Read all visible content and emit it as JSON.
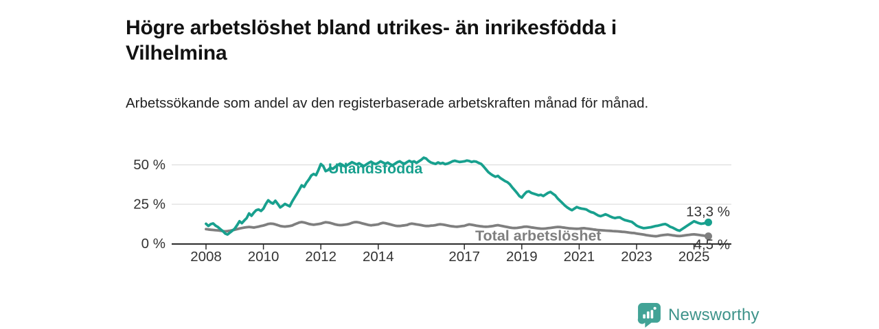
{
  "header": {
    "title": "Högre arbetslöshet bland utrikes- än inrikesfödda i Vilhelmina",
    "subtitle": "Arbetssökande som andel av den registerbaserade arbetskraften månad för månad."
  },
  "chart_data": {
    "type": "line",
    "title": "",
    "xlabel": "",
    "ylabel": "",
    "x_unit": "decimal-year, monthly data",
    "x_start": 2008.0,
    "x_step": 0.083333,
    "xlim": [
      2006.8,
      2026.3
    ],
    "ylim": [
      0,
      56.5
    ],
    "grid": "horizontal",
    "axis_color": "#2b2b2b",
    "grid_color": "#dddddd",
    "tick_label_color": "#333333",
    "x_ticks": [
      2008,
      2010,
      2012,
      2014,
      2017,
      2019,
      2021,
      2023,
      2025
    ],
    "y_ticks": [
      {
        "value": 0,
        "label": "0 %"
      },
      {
        "value": 25,
        "label": "25 %"
      },
      {
        "value": 50,
        "label": "50 %"
      }
    ],
    "series": [
      {
        "name": "Utlandsfödda",
        "color": "#18A08E",
        "end_value": 13.3,
        "end_label": "13,3 %",
        "values": [
          12.4,
          11.0,
          12.2,
          12.6,
          11.2,
          10.3,
          9.0,
          7.8,
          6.2,
          5.6,
          6.8,
          8.0,
          9.3,
          11.5,
          14.0,
          12.8,
          14.5,
          16.0,
          19.0,
          17.5,
          19.5,
          21.0,
          21.5,
          20.5,
          22.0,
          25.0,
          27.3,
          26.0,
          25.2,
          27.0,
          25.0,
          22.8,
          23.8,
          25.0,
          24.2,
          23.5,
          26.5,
          29.0,
          31.5,
          34.0,
          36.8,
          35.8,
          38.5,
          40.5,
          43.0,
          44.0,
          43.2,
          46.5,
          50.3,
          49.0,
          45.8,
          46.5,
          48.0,
          47.2,
          48.5,
          49.5,
          50.5,
          49.8,
          48.8,
          49.5,
          50.5,
          51.5,
          50.8,
          50.0,
          50.8,
          49.8,
          49.0,
          50.0,
          51.0,
          51.8,
          50.8,
          50.2,
          51.0,
          52.0,
          51.2,
          50.5,
          51.2,
          50.2,
          49.5,
          50.5,
          51.5,
          52.0,
          51.0,
          50.5,
          51.5,
          52.3,
          51.5,
          52.0,
          51.0,
          52.0,
          53.0,
          54.3,
          53.8,
          52.3,
          51.3,
          50.8,
          50.4,
          51.3,
          50.6,
          51.0,
          50.2,
          50.6,
          51.2,
          52.0,
          52.4,
          52.0,
          51.6,
          51.8,
          52.0,
          52.5,
          52.2,
          51.6,
          52.0,
          51.8,
          51.0,
          50.4,
          48.8,
          47.0,
          45.2,
          44.0,
          43.0,
          42.2,
          42.8,
          41.5,
          40.5,
          39.5,
          38.8,
          37.5,
          35.5,
          33.8,
          32.0,
          30.0,
          29.0,
          31.0,
          32.6,
          33.0,
          32.0,
          31.5,
          31.0,
          30.5,
          30.8,
          30.0,
          31.0,
          32.0,
          32.6,
          31.5,
          30.4,
          28.5,
          27.0,
          25.5,
          24.0,
          22.8,
          21.8,
          21.0,
          22.0,
          23.0,
          22.4,
          22.0,
          21.8,
          21.5,
          20.5,
          19.8,
          19.4,
          18.5,
          17.6,
          17.2,
          17.8,
          18.4,
          17.8,
          17.0,
          16.4,
          16.0,
          16.4,
          16.5,
          15.5,
          14.8,
          14.4,
          14.0,
          13.6,
          12.5,
          11.2,
          10.5,
          10.0,
          9.6,
          9.8,
          10.0,
          10.2,
          10.6,
          11.0,
          11.2,
          11.6,
          12.0,
          12.2,
          11.5,
          10.5,
          10.0,
          9.2,
          8.4,
          8.0,
          9.0,
          10.0,
          11.0,
          12.0,
          13.0,
          14.0,
          13.4,
          12.8,
          12.4,
          12.6,
          13.0,
          13.3
        ]
      },
      {
        "name": "Total arbetslöshet",
        "color": "#7F7F7F",
        "end_value": 4.5,
        "end_label": "4,5 %",
        "values": [
          9.0,
          8.8,
          8.6,
          8.5,
          8.3,
          8.2,
          8.0,
          7.8,
          7.6,
          7.8,
          8.0,
          8.3,
          8.6,
          9.0,
          9.4,
          9.7,
          10.0,
          10.2,
          10.4,
          10.2,
          10.0,
          10.3,
          10.6,
          11.0,
          11.3,
          11.8,
          12.3,
          12.5,
          12.4,
          12.0,
          11.5,
          11.0,
          10.8,
          10.6,
          10.8,
          11.0,
          11.3,
          12.0,
          12.6,
          13.2,
          13.5,
          13.2,
          12.8,
          12.3,
          12.0,
          11.8,
          12.0,
          12.2,
          12.5,
          13.0,
          13.4,
          13.2,
          12.9,
          12.5,
          12.0,
          11.7,
          11.5,
          11.6,
          11.8,
          12.0,
          12.4,
          13.0,
          13.4,
          13.5,
          13.2,
          12.8,
          12.4,
          12.0,
          11.6,
          11.4,
          11.6,
          11.8,
          12.0,
          12.6,
          13.0,
          12.8,
          12.4,
          12.0,
          11.6,
          11.2,
          11.0,
          11.0,
          11.2,
          11.4,
          11.6,
          12.2,
          12.5,
          12.3,
          12.0,
          11.8,
          11.5,
          11.2,
          11.0,
          11.0,
          11.2,
          11.3,
          11.5,
          11.9,
          12.1,
          11.9,
          11.6,
          11.3,
          11.0,
          10.8,
          10.6,
          10.5,
          10.7,
          10.9,
          11.1,
          11.6,
          12.0,
          11.8,
          11.5,
          11.2,
          11.0,
          10.8,
          10.6,
          10.5,
          10.6,
          10.8,
          11.0,
          11.3,
          11.5,
          11.2,
          10.9,
          10.6,
          10.3,
          10.0,
          9.8,
          9.7,
          9.8,
          10.0,
          10.2,
          10.5,
          10.6,
          10.4,
          10.1,
          9.9,
          9.7,
          9.5,
          9.3,
          9.3,
          9.4,
          9.6,
          9.8,
          10.0,
          10.2,
          10.4,
          10.3,
          10.1,
          9.9,
          9.7,
          9.5,
          9.4,
          9.3,
          9.2,
          9.3,
          9.5,
          9.6,
          9.4,
          9.2,
          9.0,
          8.8,
          8.6,
          8.4,
          8.3,
          8.2,
          8.1,
          8.0,
          7.9,
          7.8,
          7.7,
          7.6,
          7.5,
          7.3,
          7.2,
          7.0,
          6.8,
          6.6,
          6.5,
          6.2,
          6.0,
          5.8,
          5.5,
          5.2,
          5.0,
          4.8,
          4.6,
          4.5,
          4.7,
          5.0,
          5.2,
          5.4,
          5.5,
          5.3,
          5.1,
          4.9,
          4.7,
          4.6,
          4.8,
          5.0,
          5.2,
          5.4,
          5.6,
          5.7,
          5.5,
          5.3,
          5.1,
          4.9,
          4.7,
          4.5
        ]
      }
    ],
    "legend_position": "inline-labels-on-lines"
  },
  "footer": {
    "brand": "Newsworthy",
    "logo_icon": "bar-chart-speech-bubble-icon",
    "icon_color": "#42A396",
    "text_color": "#3E938A"
  }
}
